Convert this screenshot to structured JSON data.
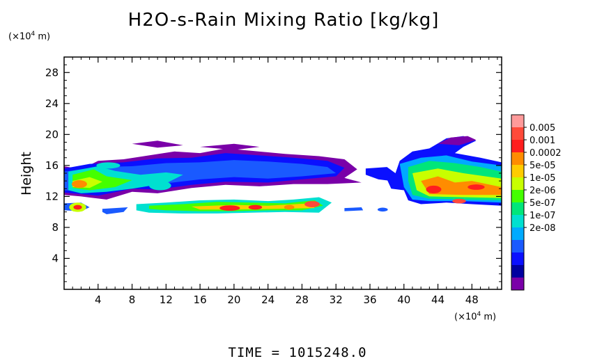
{
  "chart_data": {
    "type": "heatmap",
    "title": "H2O-s-Rain Mixing Ratio [kg/kg]",
    "ylabel": "Height",
    "x_unit": "(×10⁴ m)",
    "y_unit": "(×10⁴ m)",
    "x_unit_prefix": "(×10",
    "y_unit_prefix": "(×10",
    "unit_exponent": "4",
    "unit_suffix": " m)",
    "xlim": [
      0,
      51.5
    ],
    "ylim": [
      0,
      30
    ],
    "xticks": [
      "4",
      "8",
      "12",
      "16",
      "20",
      "24",
      "28",
      "32",
      "36",
      "40",
      "44",
      "48"
    ],
    "yticks": [
      "4",
      "8",
      "12",
      "16",
      "20",
      "24",
      "28"
    ],
    "colorbar_labels": [
      "0.005",
      "0.001",
      "0.0002",
      "5e-05",
      "1e-05",
      "2e-06",
      "5e-07",
      "1e-07",
      "2e-08"
    ],
    "colorbar_colors": [
      "#ff9a9a",
      "#ff4a3a",
      "#ff1e1e",
      "#ff8c00",
      "#ffcc00",
      "#c8ff00",
      "#44ff00",
      "#00e67a",
      "#00e0d0",
      "#00aaff",
      "#1a5aff",
      "#0a10ff",
      "#0000a0",
      "#7a00a8"
    ],
    "grid": false
  },
  "footer": {
    "time_label": "TIME = 1015248.0"
  }
}
